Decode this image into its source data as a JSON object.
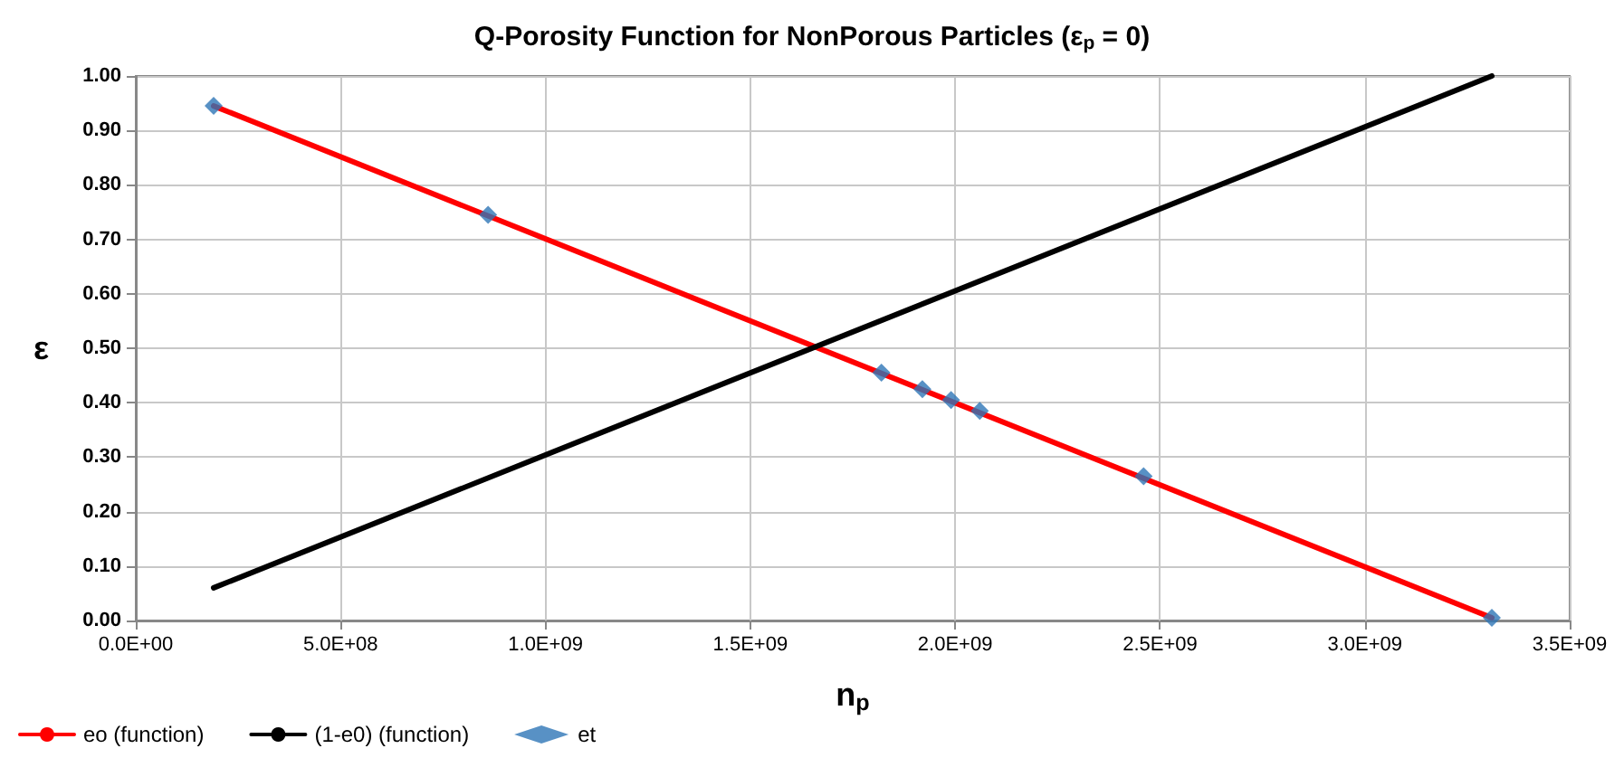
{
  "chart_data": {
    "type": "line",
    "title": "Q-Porosity Function for NonPorous Particles (ε$_{p}$ = 0)",
    "xlabel": "n$_{p}$",
    "ylabel": "ε",
    "xlim": [
      0,
      3500000000
    ],
    "ylim": [
      0,
      1
    ],
    "xticks": [
      {
        "value": 0,
        "label": "0.0E+00"
      },
      {
        "value": 500000000,
        "label": "5.0E+08"
      },
      {
        "value": 1000000000,
        "label": "1.0E+09"
      },
      {
        "value": 1500000000,
        "label": "1.5E+09"
      },
      {
        "value": 2000000000,
        "label": "2.0E+09"
      },
      {
        "value": 2500000000,
        "label": "2.5E+09"
      },
      {
        "value": 3000000000,
        "label": "3.0E+09"
      },
      {
        "value": 3500000000,
        "label": "3.5E+09"
      }
    ],
    "yticks": [
      {
        "value": 0,
        "label": "0.00"
      },
      {
        "value": 0.1,
        "label": "0.10"
      },
      {
        "value": 0.2,
        "label": "0.20"
      },
      {
        "value": 0.3,
        "label": "0.30"
      },
      {
        "value": 0.4,
        "label": "0.40"
      },
      {
        "value": 0.5,
        "label": "0.50"
      },
      {
        "value": 0.6,
        "label": "0.60"
      },
      {
        "value": 0.7,
        "label": "0.70"
      },
      {
        "value": 0.8,
        "label": "0.80"
      },
      {
        "value": 0.9,
        "label": "0.90"
      },
      {
        "value": 1,
        "label": "1.00"
      }
    ],
    "grid": true,
    "legend": "bottom left",
    "line_style": "solid",
    "series": [
      {
        "name": "eo (function)",
        "type": "line",
        "marker": "none",
        "color": "#ff0000",
        "x": [
          190000000,
          3310000000
        ],
        "values": [
          0.945,
          0.005
        ]
      },
      {
        "name": "(1-e0) (function)",
        "type": "line",
        "marker": "none",
        "color": "#000000",
        "x": [
          190000000,
          3310000000
        ],
        "values": [
          0.06,
          1.0
        ]
      },
      {
        "name": "et",
        "type": "scatter",
        "marker": "diamond",
        "color": "#2e75b6",
        "x": [
          190000000,
          860000000,
          1820000000,
          1920000000,
          1990000000,
          2060000000,
          2460000000,
          3310000000
        ],
        "values": [
          0.945,
          0.745,
          0.455,
          0.425,
          0.405,
          0.385,
          0.265,
          0.005
        ]
      }
    ]
  }
}
